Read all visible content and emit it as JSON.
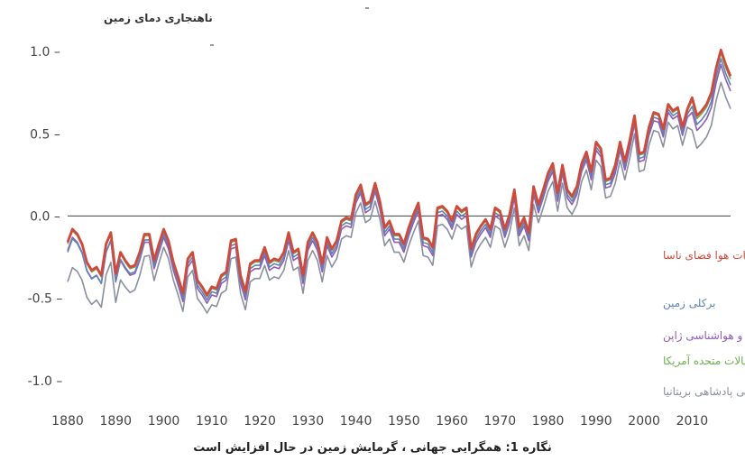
{
  "chart_data": {
    "type": "line",
    "title": "",
    "xlabel": "",
    "ylabel": "ناهنجاری دمای زمین",
    "xlim": [
      1880,
      2018
    ],
    "ylim": [
      -1.1,
      1.05
    ],
    "x_ticks": [
      "1880",
      "1890",
      "1900",
      "1910",
      "1920",
      "1930",
      "1940",
      "1950",
      "1960",
      "1970",
      "1980",
      "1990",
      "2000",
      "2010"
    ],
    "y_ticks": [
      {
        "value": 1.0,
        "label": "1.0 –"
      },
      {
        "value": 0.5,
        "label": "0.5 –"
      },
      {
        "value": 0.0,
        "label": "0.0 –"
      },
      {
        "value": -0.5,
        "label": "-0.5 –"
      },
      {
        "value": -1.0,
        "label": "-1.0 –"
      }
    ],
    "grid": false,
    "zero_line": true,
    "legend_placement": "bottom-right",
    "series": [
      {
        "name": "واحد پژوهشی آب و هوا، مرکز پیش بینی آب و هوای ملی پادشاهی بریتانیا",
        "color": "#8a8fa0",
        "offset": -0.11,
        "early_extra": -0.13
      },
      {
        "name": "اداره ملی اقیانوس و اتمسفر ایالات متحده آمریکا",
        "color": "#6fae4f",
        "offset": -0.01,
        "early_extra": 0
      },
      {
        "name": "بنگاه آب و هواشناسی ژاپن",
        "color": "#8e5bb5",
        "offset": -0.05,
        "early_extra": 0
      },
      {
        "name": "برکلی زمین",
        "color": "#5f83b8",
        "offset": -0.03,
        "early_extra": -0.03
      },
      {
        "name": "موسسه گودارد برای مطالعات هوا فضای ناسا",
        "color": "#d04a3c",
        "offset": 0.0,
        "early_extra": 0
      }
    ],
    "x": [
      1880,
      1881,
      1882,
      1883,
      1884,
      1885,
      1886,
      1887,
      1888,
      1889,
      1890,
      1891,
      1892,
      1893,
      1894,
      1895,
      1896,
      1897,
      1898,
      1899,
      1900,
      1901,
      1902,
      1903,
      1904,
      1905,
      1906,
      1907,
      1908,
      1909,
      1910,
      1911,
      1912,
      1913,
      1914,
      1915,
      1916,
      1917,
      1918,
      1919,
      1920,
      1921,
      1922,
      1923,
      1924,
      1925,
      1926,
      1927,
      1928,
      1929,
      1930,
      1931,
      1932,
      1933,
      1934,
      1935,
      1936,
      1937,
      1938,
      1939,
      1940,
      1941,
      1942,
      1943,
      1944,
      1945,
      1946,
      1947,
      1948,
      1949,
      1950,
      1951,
      1952,
      1953,
      1954,
      1955,
      1956,
      1957,
      1958,
      1959,
      1960,
      1961,
      1962,
      1963,
      1964,
      1965,
      1966,
      1967,
      1968,
      1969,
      1970,
      1971,
      1972,
      1973,
      1974,
      1975,
      1976,
      1977,
      1978,
      1979,
      1980,
      1981,
      1982,
      1983,
      1984,
      1985,
      1986,
      1987,
      1988,
      1989,
      1990,
      1991,
      1992,
      1993,
      1994,
      1995,
      1996,
      1997,
      1998,
      1999,
      2000,
      2001,
      2002,
      2003,
      2004,
      2005,
      2006,
      2007,
      2008,
      2009,
      2010,
      2011,
      2012,
      2013,
      2014,
      2015,
      2016,
      2017,
      2018
    ],
    "values": [
      -0.16,
      -0.08,
      -0.11,
      -0.17,
      -0.28,
      -0.33,
      -0.31,
      -0.36,
      -0.17,
      -0.1,
      -0.35,
      -0.22,
      -0.27,
      -0.31,
      -0.3,
      -0.22,
      -0.11,
      -0.11,
      -0.27,
      -0.17,
      -0.08,
      -0.15,
      -0.28,
      -0.37,
      -0.47,
      -0.26,
      -0.22,
      -0.39,
      -0.43,
      -0.48,
      -0.43,
      -0.44,
      -0.36,
      -0.34,
      -0.15,
      -0.14,
      -0.36,
      -0.46,
      -0.29,
      -0.27,
      -0.27,
      -0.19,
      -0.28,
      -0.26,
      -0.27,
      -0.22,
      -0.1,
      -0.22,
      -0.2,
      -0.36,
      -0.16,
      -0.1,
      -0.16,
      -0.29,
      -0.13,
      -0.2,
      -0.15,
      -0.03,
      -0.01,
      -0.02,
      0.13,
      0.19,
      0.07,
      0.09,
      0.2,
      0.09,
      -0.07,
      -0.03,
      -0.11,
      -0.11,
      -0.17,
      -0.07,
      0.01,
      0.08,
      -0.13,
      -0.14,
      -0.19,
      0.05,
      0.06,
      0.03,
      -0.03,
      0.06,
      0.03,
      0.05,
      -0.2,
      -0.11,
      -0.06,
      -0.02,
      -0.08,
      0.05,
      0.03,
      -0.08,
      0.01,
      0.16,
      -0.07,
      -0.01,
      -0.1,
      0.18,
      0.07,
      0.16,
      0.26,
      0.32,
      0.14,
      0.31,
      0.16,
      0.12,
      0.18,
      0.32,
      0.39,
      0.27,
      0.45,
      0.41,
      0.22,
      0.23,
      0.31,
      0.45,
      0.33,
      0.46,
      0.61,
      0.38,
      0.39,
      0.54,
      0.63,
      0.62,
      0.53,
      0.68,
      0.64,
      0.66,
      0.54,
      0.65,
      0.72,
      0.61,
      0.64,
      0.68,
      0.75,
      0.9,
      1.01,
      0.92,
      0.85
    ]
  },
  "caption": "نگاره 1: همگرایی جهانی ، گرمایش زمین در حال افزایش است"
}
